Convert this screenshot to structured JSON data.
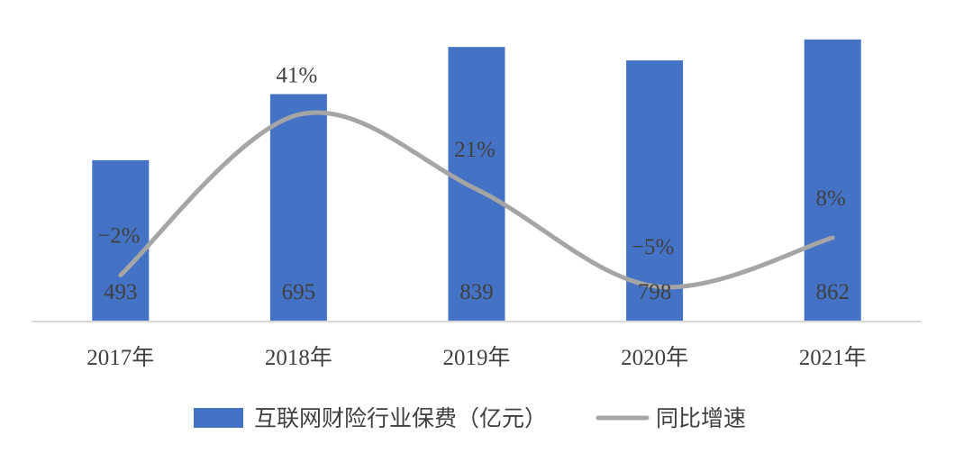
{
  "chart_data": {
    "type": "bar",
    "categories": [
      "2017年",
      "2018年",
      "2019年",
      "2020年",
      "2021年"
    ],
    "series": [
      {
        "name": "互联网财险行业保费（亿元）",
        "kind": "bar",
        "axis": "left",
        "color": "#4472C4",
        "values": [
          493,
          695,
          839,
          798,
          862
        ],
        "labels": [
          "493",
          "695",
          "839",
          "798",
          "862"
        ]
      },
      {
        "name": "同比增速",
        "kind": "line",
        "axis": "right",
        "smooth": true,
        "color": "#A5A5A5",
        "values": [
          -2,
          41,
          21,
          -5,
          8
        ],
        "labels": [
          "−2%",
          "41%",
          "21%",
          "−5%",
          "8%"
        ]
      }
    ],
    "ylim": [
      0,
      900
    ],
    "y2lim": [
      -20,
      50
    ],
    "grid": false,
    "legend_position": "bottom"
  }
}
